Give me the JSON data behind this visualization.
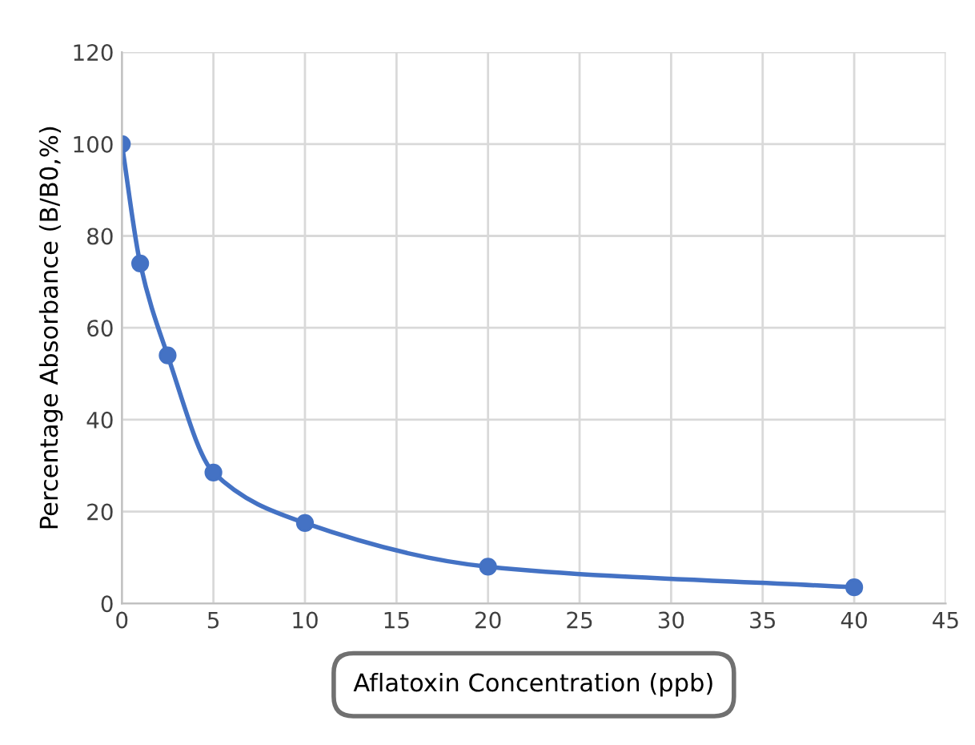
{
  "chart_data": {
    "type": "line",
    "xlabel": "Aflatoxin Concentration (ppb)",
    "ylabel": "Percentage Absorbance (B/B0,%)",
    "x": [
      0,
      1,
      2.5,
      5,
      10,
      20,
      40
    ],
    "series": [
      {
        "color": "#4472c4",
        "values": [
          100,
          74,
          54,
          28.5,
          17.5,
          8,
          3.5
        ]
      }
    ],
    "xlim": [
      0,
      45
    ],
    "xticks": [
      0,
      5,
      10,
      15,
      20,
      25,
      30,
      35,
      40,
      45
    ],
    "ylim": [
      0,
      120
    ],
    "yticks": [
      0,
      20,
      40,
      60,
      80,
      100,
      120
    ],
    "grid": true,
    "marker": "circle",
    "line_style": "solid"
  }
}
